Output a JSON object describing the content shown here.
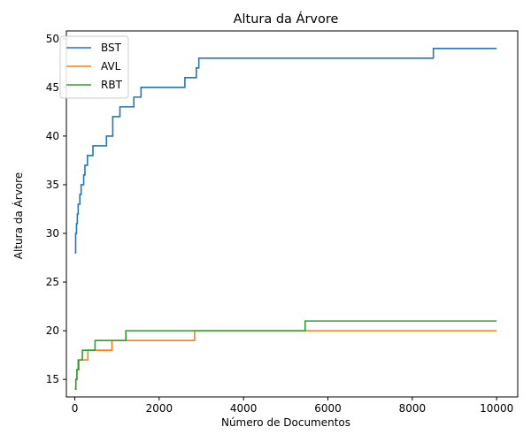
{
  "chart_data": {
    "type": "line",
    "title": "Altura da Árvore",
    "xlabel": "Número de Documentos",
    "ylabel": "Altura da Árvore",
    "xlim": [
      -200,
      10500
    ],
    "ylim": [
      13.2,
      50.8
    ],
    "xticks": [
      0,
      2000,
      4000,
      6000,
      8000,
      10000
    ],
    "yticks": [
      15,
      20,
      25,
      30,
      35,
      40,
      45,
      50
    ],
    "grid": false,
    "legend_position": "top-left",
    "series": [
      {
        "name": "BST",
        "color": "#1f77b4",
        "points": [
          [
            0,
            28
          ],
          [
            20,
            30
          ],
          [
            40,
            31
          ],
          [
            60,
            32
          ],
          [
            80,
            33
          ],
          [
            120,
            34
          ],
          [
            150,
            35
          ],
          [
            210,
            36
          ],
          [
            240,
            37
          ],
          [
            300,
            38
          ],
          [
            430,
            39
          ],
          [
            750,
            40
          ],
          [
            900,
            42
          ],
          [
            1070,
            43
          ],
          [
            1400,
            44
          ],
          [
            1570,
            45
          ],
          [
            2610,
            46
          ],
          [
            2880,
            47
          ],
          [
            2940,
            48
          ],
          [
            8500,
            49
          ],
          [
            10000,
            49
          ]
        ]
      },
      {
        "name": "AVL",
        "color": "#ff7f0e",
        "points": [
          [
            0,
            14
          ],
          [
            25,
            15
          ],
          [
            50,
            16
          ],
          [
            100,
            17
          ],
          [
            310,
            18
          ],
          [
            880,
            19
          ],
          [
            2840,
            20
          ],
          [
            10000,
            20
          ]
        ]
      },
      {
        "name": "RBT",
        "color": "#2ca02c",
        "points": [
          [
            0,
            14
          ],
          [
            25,
            15
          ],
          [
            50,
            16
          ],
          [
            80,
            17
          ],
          [
            180,
            18
          ],
          [
            480,
            19
          ],
          [
            1210,
            20
          ],
          [
            5460,
            21
          ],
          [
            10000,
            21
          ]
        ]
      }
    ]
  }
}
